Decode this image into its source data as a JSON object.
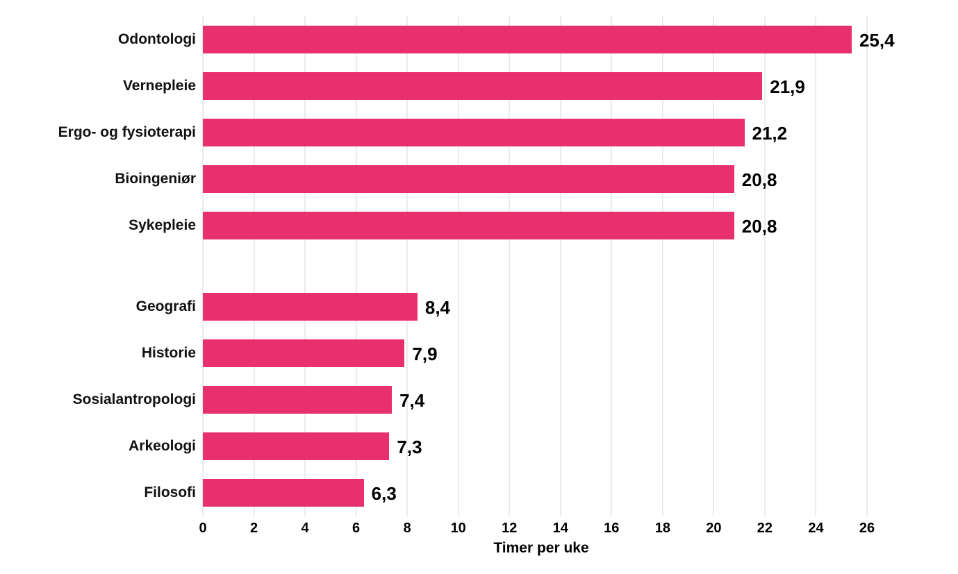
{
  "chart_data": {
    "type": "bar",
    "orientation": "horizontal",
    "title": "",
    "xlabel": "Timer per uke",
    "ylabel": "",
    "xlim": [
      0,
      26
    ],
    "x_ticks": [
      0,
      2,
      4,
      6,
      8,
      10,
      12,
      14,
      16,
      18,
      20,
      22,
      24,
      26
    ],
    "grid": true,
    "legend": null,
    "bar_color": "#E8306F",
    "groups": [
      {
        "categories": [
          "Odontologi",
          "Vernepleie",
          "Ergo- og fysioterapi",
          "Bioingeniør",
          "Sykepleie"
        ],
        "values": [
          25.4,
          21.9,
          21.2,
          20.8,
          20.8
        ],
        "value_labels": [
          "25,4",
          "21,9",
          "21,2",
          "20,8",
          "20,8"
        ]
      },
      {
        "categories": [
          "Geografi",
          "Historie",
          "Sosialantropologi",
          "Arkeologi",
          "Filosofi"
        ],
        "values": [
          8.4,
          7.9,
          7.4,
          7.3,
          6.3
        ],
        "value_labels": [
          "8,4",
          "7,9",
          "7,4",
          "7,3",
          "6,3"
        ]
      }
    ],
    "categories": [
      "Odontologi",
      "Vernepleie",
      "Ergo- og fysioterapi",
      "Bioingeniør",
      "Sykepleie",
      "Geografi",
      "Historie",
      "Sosialantropologi",
      "Arkeologi",
      "Filosofi"
    ],
    "values": [
      25.4,
      21.9,
      21.2,
      20.8,
      20.8,
      8.4,
      7.9,
      7.4,
      7.3,
      6.3
    ]
  }
}
